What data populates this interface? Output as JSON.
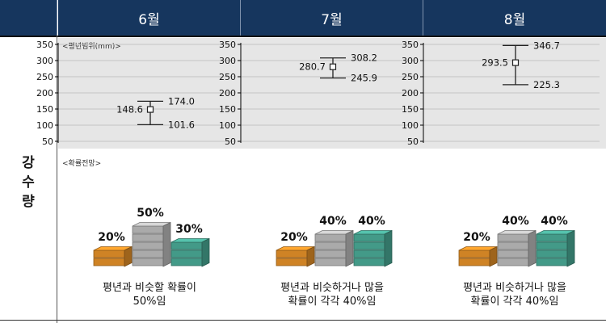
{
  "header": {
    "months": [
      "6월",
      "7월",
      "8월"
    ]
  },
  "side_label": [
    "강",
    "수",
    "량"
  ],
  "range_caption": "<평년범위(mm)>",
  "prob_caption": "<확률전망>",
  "colors": {
    "header_bg": "#16365e",
    "below": "#f39a2b",
    "normal": "#c8c8c8",
    "above": "#4fb5a0"
  },
  "chart_data": [
    {
      "type": "errorbar",
      "month": "6월",
      "ylim": [
        50,
        350
      ],
      "yticks": [
        "350",
        "300",
        "250",
        "200",
        "150",
        "100",
        "50"
      ],
      "mean": 148.6,
      "upper": 174.0,
      "lower": 101.6,
      "labels": {
        "mean": "148.6",
        "upper": "174.0",
        "lower": "101.6"
      }
    },
    {
      "type": "errorbar",
      "month": "7월",
      "ylim": [
        50,
        350
      ],
      "yticks": [
        "350",
        "300",
        "250",
        "200",
        "150",
        "100",
        "50"
      ],
      "mean": 280.7,
      "upper": 308.2,
      "lower": 245.9,
      "labels": {
        "mean": "280.7",
        "upper": "308.2",
        "lower": "245.9"
      }
    },
    {
      "type": "errorbar",
      "month": "8월",
      "ylim": [
        50,
        350
      ],
      "yticks": [
        "350",
        "300",
        "250",
        "200",
        "150",
        "100",
        "50"
      ],
      "mean": 293.5,
      "upper": 346.7,
      "lower": 225.3,
      "labels": {
        "mean": "293.5",
        "upper": "346.7",
        "lower": "225.3"
      }
    },
    {
      "type": "bar",
      "month": "6월",
      "categories": [
        "below",
        "normal",
        "above"
      ],
      "values": [
        20,
        50,
        30
      ],
      "labels": [
        "20%",
        "50%",
        "30%"
      ],
      "caption": [
        "평년과 비슷할 확률이",
        "50%임"
      ]
    },
    {
      "type": "bar",
      "month": "7월",
      "categories": [
        "below",
        "normal",
        "above"
      ],
      "values": [
        20,
        40,
        40
      ],
      "labels": [
        "20%",
        "40%",
        "40%"
      ],
      "caption": [
        "평년과 비슷하거나 많을",
        "확률이 각각 40%임"
      ]
    },
    {
      "type": "bar",
      "month": "8월",
      "categories": [
        "below",
        "normal",
        "above"
      ],
      "values": [
        20,
        40,
        40
      ],
      "labels": [
        "20%",
        "40%",
        "40%"
      ],
      "caption": [
        "평년과 비슷하거나 많을",
        "확률이 각각 40%임"
      ]
    }
  ]
}
